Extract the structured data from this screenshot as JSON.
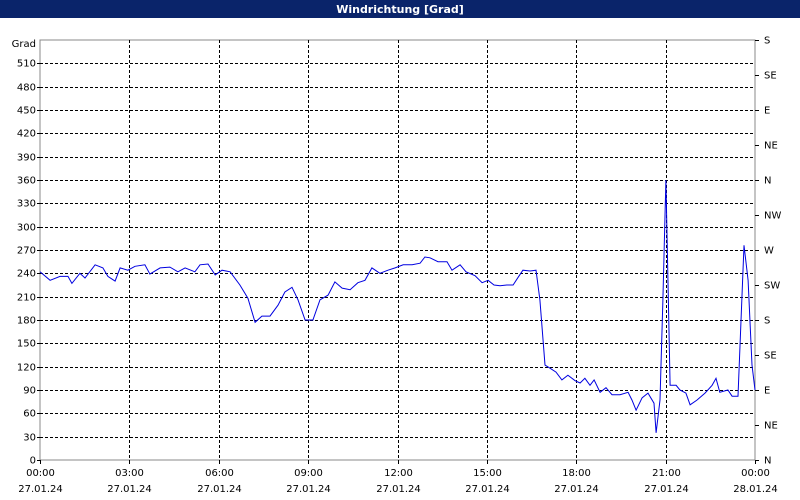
{
  "chart_data": {
    "type": "line",
    "title": "Windrichtung [Grad]",
    "y_label": "Grad",
    "color": "#0000e0",
    "grid": true,
    "xlim": [
      0,
      24
    ],
    "ylim": [
      0,
      540
    ],
    "y2lim": [
      0,
      540
    ],
    "xticks": [
      {
        "value": 0,
        "label": "00:00",
        "date": "27.01.24"
      },
      {
        "value": 3,
        "label": "03:00",
        "date": "27.01.24"
      },
      {
        "value": 6,
        "label": "06:00",
        "date": "27.01.24"
      },
      {
        "value": 9,
        "label": "09:00",
        "date": "27.01.24"
      },
      {
        "value": 12,
        "label": "12:00",
        "date": "27.01.24"
      },
      {
        "value": 15,
        "label": "15:00",
        "date": "27.01.24"
      },
      {
        "value": 18,
        "label": "18:00",
        "date": "27.01.24"
      },
      {
        "value": 21,
        "label": "21:00",
        "date": "27.01.24"
      },
      {
        "value": 24,
        "label": "00:00",
        "date": "28.01.24"
      }
    ],
    "yticks": [
      0,
      30,
      60,
      90,
      120,
      150,
      180,
      210,
      240,
      270,
      300,
      330,
      360,
      390,
      420,
      450,
      480,
      510
    ],
    "y2ticks": [
      {
        "value": 0,
        "label": "N"
      },
      {
        "value": 45,
        "label": "NE"
      },
      {
        "value": 90,
        "label": "E"
      },
      {
        "value": 135,
        "label": "SE"
      },
      {
        "value": 180,
        "label": "S"
      },
      {
        "value": 225,
        "label": "SW"
      },
      {
        "value": 270,
        "label": "W"
      },
      {
        "value": 315,
        "label": "NW"
      },
      {
        "value": 360,
        "label": "N"
      },
      {
        "value": 405,
        "label": "NE"
      },
      {
        "value": 450,
        "label": "E"
      },
      {
        "value": 495,
        "label": "SE"
      },
      {
        "value": 540,
        "label": "S"
      }
    ],
    "x": [
      0,
      0.34,
      0.67,
      0.94,
      1.07,
      1.34,
      1.51,
      1.85,
      2.11,
      2.28,
      2.52,
      2.69,
      2.95,
      3.19,
      3.52,
      3.69,
      4.03,
      4.36,
      4.63,
      4.87,
      5.2,
      5.37,
      5.64,
      5.88,
      6.11,
      6.38,
      6.71,
      6.98,
      7.22,
      7.45,
      7.72,
      7.99,
      8.22,
      8.46,
      8.66,
      8.9,
      9.16,
      9.4,
      9.67,
      9.9,
      10.14,
      10.41,
      10.67,
      10.91,
      11.14,
      11.41,
      11.68,
      11.92,
      12.19,
      12.49,
      12.76,
      12.92,
      13.09,
      13.36,
      13.66,
      13.83,
      14.1,
      14.3,
      14.6,
      14.84,
      15.04,
      15.24,
      15.44,
      15.67,
      15.88,
      16.05,
      16.21,
      16.45,
      16.65,
      16.78,
      16.95,
      17.12,
      17.32,
      17.52,
      17.72,
      17.96,
      18.13,
      18.29,
      18.46,
      18.6,
      18.8,
      19,
      19.2,
      19.47,
      19.74,
      19.87,
      20.01,
      20.21,
      20.41,
      20.61,
      20.68,
      20.81,
      20.91,
      21.01,
      21.15,
      21.35,
      21.48,
      21.68,
      21.82,
      22.05,
      22.32,
      22.56,
      22.69,
      22.82,
      23.09,
      23.23,
      23.43,
      23.63,
      23.77,
      23.9,
      24
    ],
    "values": [
      242,
      231,
      236,
      236,
      227,
      240,
      234,
      251,
      247,
      236,
      230,
      247,
      244,
      249,
      251,
      239,
      247,
      248,
      242,
      247,
      242,
      251,
      252,
      238,
      244,
      242,
      225,
      208,
      177,
      185,
      185,
      199,
      216,
      222,
      206,
      180,
      180,
      206,
      212,
      229,
      221,
      219,
      228,
      231,
      247,
      240,
      244,
      247,
      251,
      251,
      253,
      261,
      260,
      255,
      255,
      244,
      251,
      242,
      237,
      228,
      231,
      225,
      224,
      225,
      225,
      235,
      244,
      243,
      244,
      206,
      122,
      118,
      113,
      103,
      109,
      102,
      99,
      105,
      96,
      103,
      87,
      93,
      84,
      84,
      87,
      77,
      64,
      80,
      86,
      73,
      35,
      77,
      206,
      360,
      96,
      96,
      90,
      86,
      71,
      77,
      86,
      96,
      105,
      87,
      90,
      82,
      82,
      276,
      231,
      122,
      90
    ]
  }
}
